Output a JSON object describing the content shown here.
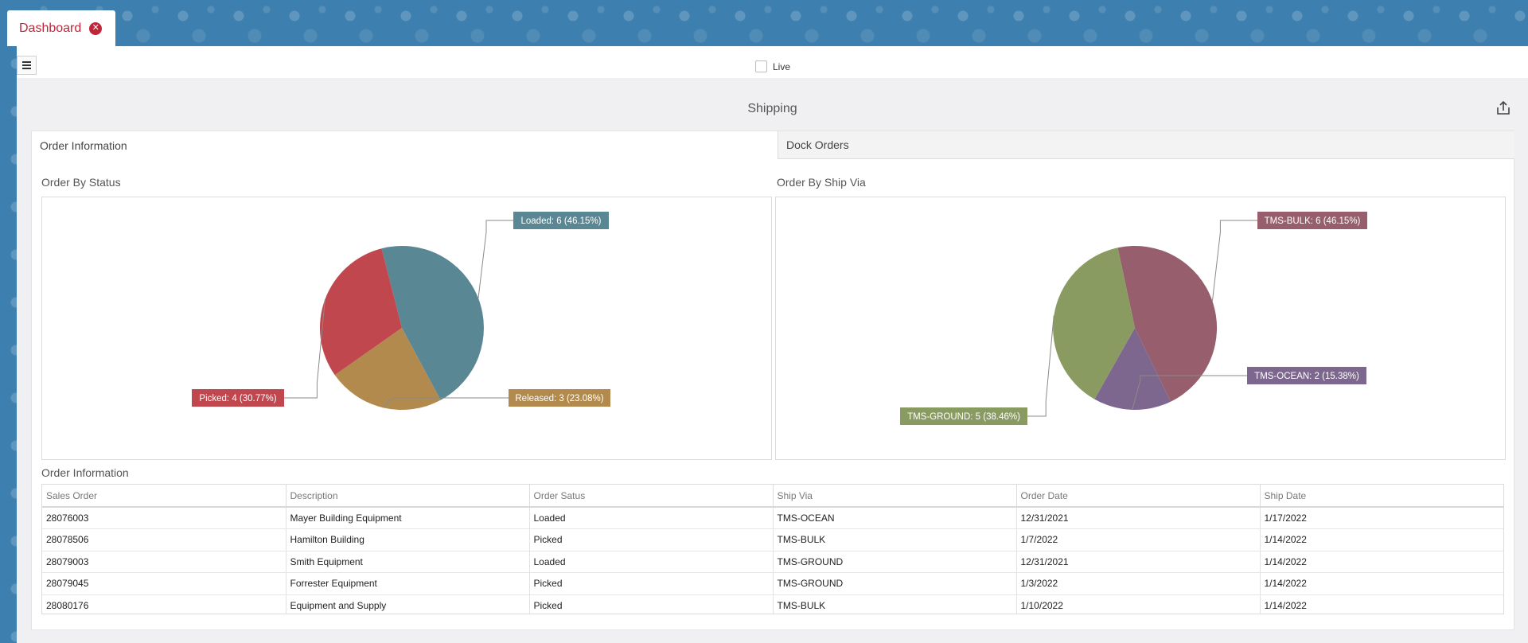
{
  "tabs": {
    "dashboard_label": "Dashboard"
  },
  "toolbar": {
    "live_label": "Live"
  },
  "page": {
    "title": "Shipping"
  },
  "panel_tabs": [
    {
      "label": "Order Information"
    },
    {
      "label": "Dock Orders"
    }
  ],
  "sections": {
    "order_by_status": "Order By Status",
    "order_by_ship_via": "Order By Ship Via",
    "order_information": "Order Information"
  },
  "chart_data": [
    {
      "type": "pie",
      "title": "Order By Status",
      "categories": [
        "Loaded",
        "Released",
        "Picked"
      ],
      "values": [
        6,
        3,
        4
      ],
      "labels": [
        "Loaded: 6 (46.15%)",
        "Released: 3 (23.08%)",
        "Picked: 4 (30.77%)"
      ],
      "colors": [
        "#5a8794",
        "#b38a4e",
        "#c0474e"
      ]
    },
    {
      "type": "pie",
      "title": "Order By Ship Via",
      "categories": [
        "TMS-BULK",
        "TMS-OCEAN",
        "TMS-GROUND"
      ],
      "values": [
        6,
        2,
        5
      ],
      "labels": [
        "TMS-BULK: 6 (46.15%)",
        "TMS-OCEAN: 2 (15.38%)",
        "TMS-GROUND: 5 (38.46%)"
      ],
      "colors": [
        "#975e6d",
        "#7e678e",
        "#8a9b62"
      ]
    }
  ],
  "table": {
    "columns": [
      "Sales Order",
      "Description",
      "Order Satus",
      "Ship Via",
      "Order Date",
      "Ship Date"
    ],
    "rows": [
      [
        "28076003",
        "Mayer Building Equipment",
        "Loaded",
        "TMS-OCEAN",
        "12/31/2021",
        "1/17/2022"
      ],
      [
        "28078506",
        "Hamilton Building",
        "Picked",
        "TMS-BULK",
        "1/7/2022",
        "1/14/2022"
      ],
      [
        "28079003",
        "Smith Equipment",
        "Loaded",
        "TMS-GROUND",
        "12/31/2021",
        "1/14/2022"
      ],
      [
        "28079045",
        "Forrester Equipment",
        "Picked",
        "TMS-GROUND",
        "1/3/2022",
        "1/14/2022"
      ],
      [
        "28080176",
        "Equipment and Supply",
        "Picked",
        "TMS-BULK",
        "1/10/2022",
        "1/14/2022"
      ]
    ]
  },
  "icons": {
    "menu": "hamburger-icon",
    "close": "close-circle-icon",
    "share": "share-export-icon"
  }
}
